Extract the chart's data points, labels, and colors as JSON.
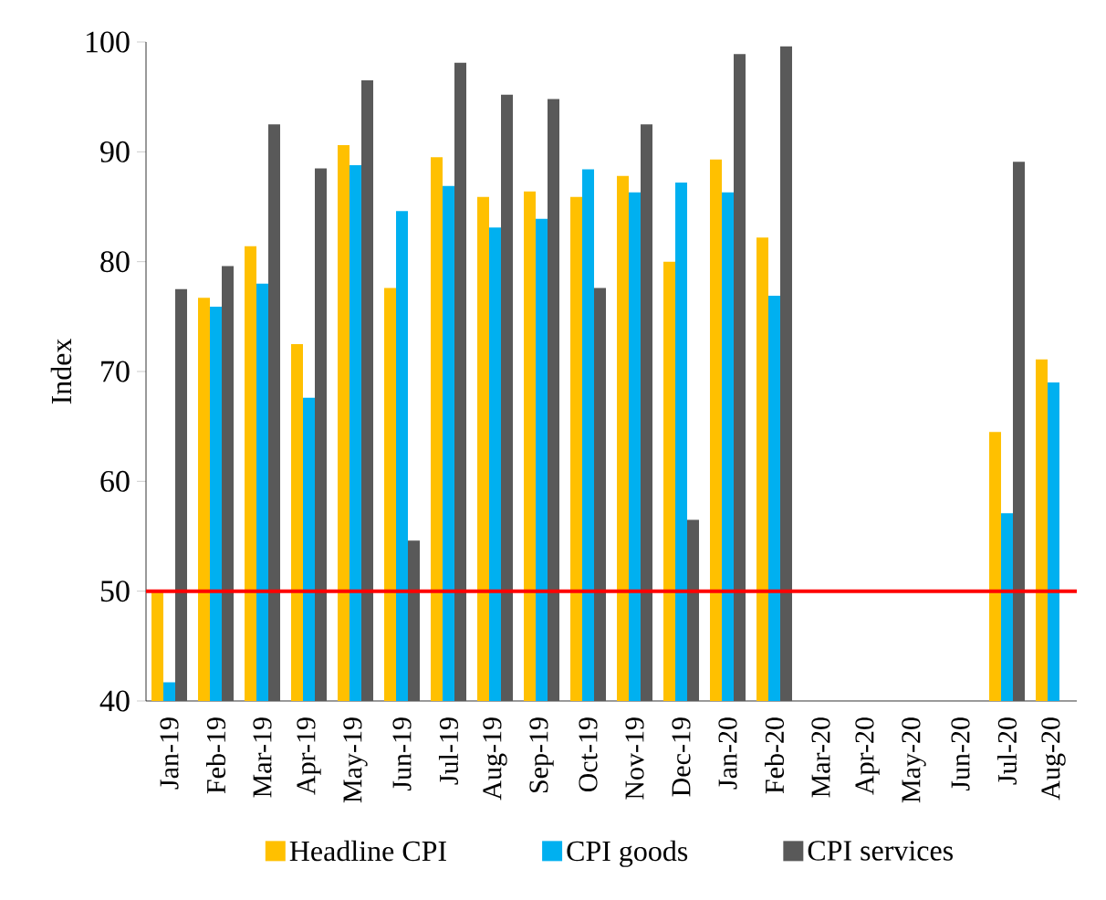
{
  "chart_data": {
    "type": "bar",
    "ylabel": "Index",
    "categories": [
      "Jan-19",
      "Feb-19",
      "Mar-19",
      "Apr-19",
      "May-19",
      "Jun-19",
      "Jul-19",
      "Aug-19",
      "Sep-19",
      "Oct-19",
      "Nov-19",
      "Dec-19",
      "Jan-20",
      "Feb-20",
      "Mar-20",
      "Apr-20",
      "May-20",
      "Jun-20",
      "Jul-20",
      "Aug-20"
    ],
    "series": [
      {
        "name": "Headline CPI",
        "color": "#ffc000",
        "values": [
          50,
          76.7,
          81.4,
          72.5,
          90.6,
          77.6,
          89.5,
          85.9,
          86.4,
          85.9,
          87.8,
          80,
          89.3,
          82.2,
          null,
          null,
          null,
          null,
          64.5,
          71.1
        ]
      },
      {
        "name": "CPI goods",
        "color": "#00b0f0",
        "values": [
          41.7,
          75.9,
          78,
          67.6,
          88.8,
          84.6,
          86.9,
          83.1,
          83.9,
          88.4,
          86.3,
          87.2,
          86.3,
          76.9,
          null,
          null,
          null,
          null,
          57.1,
          69.0
        ]
      },
      {
        "name": "CPI services",
        "color": "#595959",
        "values": [
          77.5,
          79.6,
          92.5,
          88.5,
          96.5,
          54.6,
          98.1,
          95.2,
          94.8,
          77.6,
          92.5,
          56.5,
          98.9,
          99.6,
          null,
          null,
          null,
          null,
          89.1,
          null
        ]
      }
    ],
    "ylim": [
      40,
      100
    ],
    "yticks": [
      40,
      50,
      60,
      70,
      80,
      90,
      100
    ],
    "ref_lines": [
      {
        "axis": "y",
        "value": 50,
        "color": "#ff0000"
      }
    ],
    "grid": false,
    "legend": "bottom"
  }
}
